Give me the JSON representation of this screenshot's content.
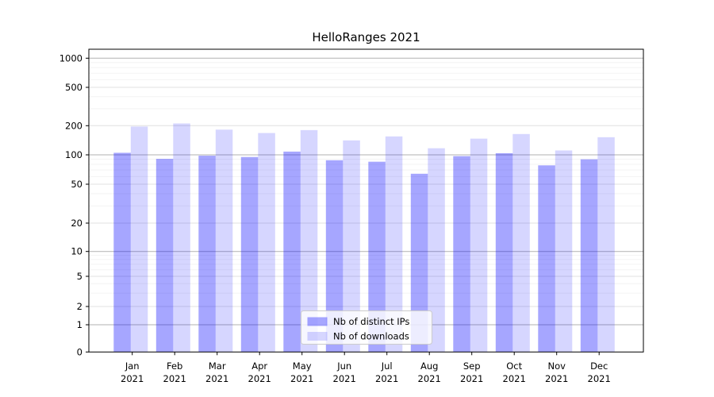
{
  "chart_data": {
    "type": "bar",
    "title": "HelloRanges 2021",
    "categories": [
      "Jan",
      "Feb",
      "Mar",
      "Apr",
      "May",
      "Jun",
      "Jul",
      "Aug",
      "Sep",
      "Oct",
      "Nov",
      "Dec"
    ],
    "category_year": "2021",
    "series": [
      {
        "name": "Nb of distinct IPs",
        "color": "rgba(0,0,255,0.35)",
        "values": [
          105,
          91,
          98,
          95,
          108,
          88,
          85,
          64,
          97,
          104,
          78,
          90
        ]
      },
      {
        "name": "Nb of downloads",
        "color": "rgba(0,0,255,0.16)",
        "values": [
          196,
          211,
          182,
          168,
          180,
          141,
          155,
          117,
          147,
          164,
          111,
          152
        ]
      }
    ],
    "yscale": "log-like with linear 0-1 segment",
    "ylim": [
      0,
      1000
    ],
    "yticks": [
      "1000",
      "500",
      "200",
      "100",
      "50",
      "20",
      "10",
      "5",
      "2",
      "1",
      "0"
    ],
    "grid": true,
    "legend_position": "lower center",
    "colors": {
      "grid_major": "#b2b2b2",
      "grid_mid": "#e0e0e0",
      "grid_minor": "#f2f2f2",
      "axis": "#000000",
      "legend_border": "#cccccc",
      "legend_background": "rgba(255,255,255,0.8)"
    }
  }
}
